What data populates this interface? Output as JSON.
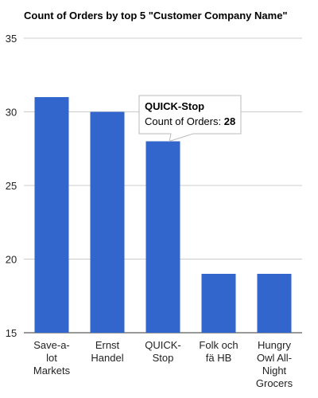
{
  "chart_data": {
    "type": "bar",
    "title": "Count of Orders by top 5 \"Customer Company Name\"",
    "categories": [
      "Save-a-lot Markets",
      "Ernst Handel",
      "QUICK-Stop",
      "Folk och fä HB",
      "Hungry Owl All-Night Grocers"
    ],
    "category_label_lines": [
      [
        "Save-a-",
        "lot",
        "Markets"
      ],
      [
        "Ernst",
        "Handel"
      ],
      [
        "QUICK-",
        "Stop"
      ],
      [
        "Folk och",
        "fä HB"
      ],
      [
        "Hungry",
        "Owl All-",
        "Night",
        "Grocers"
      ]
    ],
    "series": [
      {
        "values": [
          31,
          30,
          28,
          19,
          19
        ]
      }
    ],
    "ylim": [
      15,
      35
    ],
    "yticks": [
      15,
      20,
      25,
      30,
      35
    ],
    "grid": true,
    "legend": "none",
    "bar_color": "#3366cc"
  },
  "tooltip": {
    "category_index": 2,
    "title": "QUICK-Stop",
    "label": "Count of Orders:",
    "value": "28"
  }
}
